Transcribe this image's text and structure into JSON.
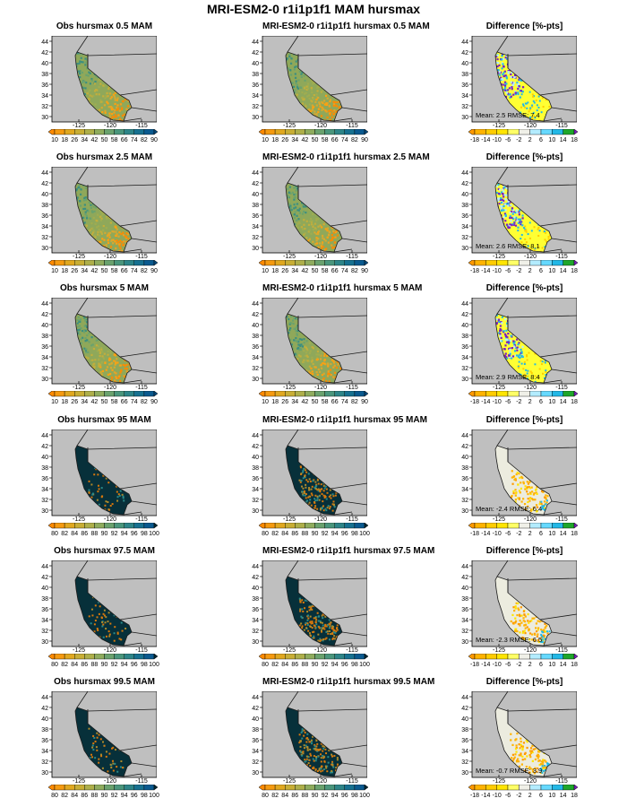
{
  "title": "MRI-ESM2-0 r1i1p1f1 MAM hursmax",
  "map": {
    "lat_ticks": [
      "44",
      "42",
      "40",
      "38",
      "36",
      "34",
      "32",
      "30"
    ],
    "lon_ticks": [
      "-125",
      "-120",
      "-115"
    ],
    "colors": {
      "ocean": "#bfbfbf",
      "border": "#1a1a1a"
    }
  },
  "colorbars": {
    "obs_low": {
      "labels": [
        "10",
        "18",
        "26",
        "34",
        "42",
        "50",
        "58",
        "66",
        "74",
        "82",
        "90"
      ],
      "colors": [
        "#ff8a00",
        "#f59a10",
        "#e0a820",
        "#c8ae35",
        "#aeaf4a",
        "#8fac5e",
        "#6aa26e",
        "#4a967c",
        "#2e8588",
        "#177190",
        "#0a5a8f",
        "#054b7d"
      ]
    },
    "obs_high": {
      "labels": [
        "80",
        "82",
        "84",
        "86",
        "88",
        "90",
        "92",
        "94",
        "96",
        "98",
        "100"
      ],
      "colors": [
        "#ff8a00",
        "#f59a10",
        "#e0a820",
        "#c8ae35",
        "#aeaf4a",
        "#8fac5e",
        "#6aa26e",
        "#4a967c",
        "#2e8588",
        "#177190",
        "#0a5a8f",
        "#032a33"
      ]
    },
    "diff": {
      "labels": [
        "-18",
        "-14",
        "-10",
        "-6",
        "-2",
        "2",
        "6",
        "10",
        "14",
        "18"
      ],
      "colors": [
        "#ff9900",
        "#ffb300",
        "#ffcc00",
        "#ffe500",
        "#ffff66",
        "#f0f0e8",
        "#b3ecff",
        "#66d9ff",
        "#22b8e6",
        "#1fa62b",
        "#7d1fbf"
      ]
    }
  },
  "rows": [
    {
      "obs": {
        "title": "Obs hursmax 0.5 MAM",
        "scale": "obs_low"
      },
      "model": {
        "title": "MRI-ESM2-0 r1i1p1f1 hursmax 0.5 MAM",
        "scale": "obs_low"
      },
      "diff": {
        "title": "Difference [%-pts]",
        "stats": "Mean: 2.5  RMSE: 7.4"
      }
    },
    {
      "obs": {
        "title": "Obs hursmax 2.5 MAM",
        "scale": "obs_low"
      },
      "model": {
        "title": "MRI-ESM2-0 r1i1p1f1 hursmax 2.5 MAM",
        "scale": "obs_low"
      },
      "diff": {
        "title": "Difference [%-pts]",
        "stats": "Mean: 2.6  RMSE: 8.1"
      }
    },
    {
      "obs": {
        "title": "Obs hursmax 5 MAM",
        "scale": "obs_low"
      },
      "model": {
        "title": "MRI-ESM2-0 r1i1p1f1 hursmax 5 MAM",
        "scale": "obs_low"
      },
      "diff": {
        "title": "Difference [%-pts]",
        "stats": "Mean: 2.9  RMSE: 8.4"
      }
    },
    {
      "obs": {
        "title": "Obs hursmax 95 MAM",
        "scale": "obs_high"
      },
      "model": {
        "title": "MRI-ESM2-0 r1i1p1f1 hursmax 95 MAM",
        "scale": "obs_high"
      },
      "diff": {
        "title": "Difference [%-pts]",
        "stats": "Mean: -2.4  RMSE: 6.4"
      }
    },
    {
      "obs": {
        "title": "Obs hursmax 97.5 MAM",
        "scale": "obs_high"
      },
      "model": {
        "title": "MRI-ESM2-0 r1i1p1f1 hursmax 97.5 MAM",
        "scale": "obs_high"
      },
      "diff": {
        "title": "Difference [%-pts]",
        "stats": "Mean: -2.3  RMSE: 6.5"
      }
    },
    {
      "obs": {
        "title": "Obs hursmax 99.5 MAM",
        "scale": "obs_high"
      },
      "model": {
        "title": "MRI-ESM2-0 r1i1p1f1 hursmax 99.5 MAM",
        "scale": "obs_high"
      },
      "diff": {
        "title": "Difference [%-pts]",
        "stats": "Mean: -0.7  RMSE: 3.9"
      }
    }
  ]
}
